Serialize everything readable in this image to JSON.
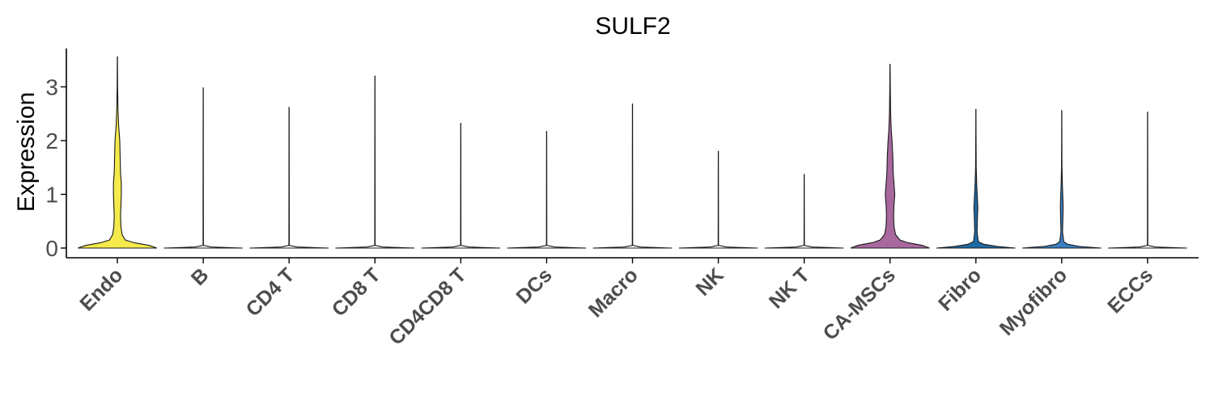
{
  "chart_data": {
    "type": "violin",
    "title": "SULF2",
    "xlabel": "",
    "ylabel": "Expression",
    "ylim": [
      -0.15,
      3.7
    ],
    "yticks": [
      0,
      1,
      2,
      3
    ],
    "ytick_labels": [
      "0",
      "1",
      "2",
      "3"
    ],
    "grid": false,
    "legend": "none",
    "categories": [
      "Endo",
      "B",
      "CD4 T",
      "CD8 T",
      "CD4CD8 T",
      "DCs",
      "Macro",
      "NK",
      "NK T",
      "CA-MSCs",
      "Fibro",
      "Myofibro",
      "ECCs"
    ],
    "max_values": [
      3.56,
      2.98,
      2.62,
      3.2,
      2.32,
      2.17,
      2.68,
      1.8,
      1.37,
      3.42,
      2.58,
      2.56,
      2.53
    ],
    "colors": [
      "#f5ea4b",
      "#ffffff",
      "#ffffff",
      "#ffffff",
      "#ffffff",
      "#ffffff",
      "#ffffff",
      "#ffffff",
      "#ffffff",
      "#a8689e",
      "#1f6aa5",
      "#3a7fc0",
      "#ffffff"
    ],
    "density_profiles": [
      [
        [
          0,
          1.0
        ],
        [
          0.05,
          0.8
        ],
        [
          0.1,
          0.42
        ],
        [
          0.15,
          0.2
        ],
        [
          0.25,
          0.12
        ],
        [
          0.4,
          0.09
        ],
        [
          0.6,
          0.08
        ],
        [
          0.8,
          0.09
        ],
        [
          1.0,
          0.1
        ],
        [
          1.2,
          0.1
        ],
        [
          1.4,
          0.08
        ],
        [
          1.7,
          0.07
        ],
        [
          2.0,
          0.06
        ],
        [
          2.3,
          0.03
        ],
        [
          2.6,
          0.015
        ],
        [
          3.0,
          0.006
        ],
        [
          3.56,
          0.002
        ]
      ],
      [
        [
          0,
          1.0
        ],
        [
          0.02,
          0.2
        ],
        [
          0.05,
          0.005
        ],
        [
          2.98,
          0.002
        ]
      ],
      [
        [
          0,
          1.0
        ],
        [
          0.02,
          0.2
        ],
        [
          0.05,
          0.005
        ],
        [
          2.62,
          0.002
        ]
      ],
      [
        [
          0,
          1.0
        ],
        [
          0.02,
          0.2
        ],
        [
          0.05,
          0.005
        ],
        [
          3.2,
          0.002
        ]
      ],
      [
        [
          0,
          1.0
        ],
        [
          0.02,
          0.2
        ],
        [
          0.05,
          0.005
        ],
        [
          2.32,
          0.002
        ]
      ],
      [
        [
          0,
          1.0
        ],
        [
          0.02,
          0.2
        ],
        [
          0.05,
          0.005
        ],
        [
          2.17,
          0.002
        ]
      ],
      [
        [
          0,
          1.0
        ],
        [
          0.02,
          0.2
        ],
        [
          0.05,
          0.005
        ],
        [
          2.68,
          0.002
        ]
      ],
      [
        [
          0,
          1.0
        ],
        [
          0.02,
          0.2
        ],
        [
          0.05,
          0.005
        ],
        [
          1.8,
          0.002
        ]
      ],
      [
        [
          0,
          1.0
        ],
        [
          0.02,
          0.2
        ],
        [
          0.05,
          0.005
        ],
        [
          1.37,
          0.002
        ]
      ],
      [
        [
          0,
          1.0
        ],
        [
          0.05,
          0.82
        ],
        [
          0.1,
          0.45
        ],
        [
          0.15,
          0.25
        ],
        [
          0.25,
          0.14
        ],
        [
          0.4,
          0.1
        ],
        [
          0.6,
          0.09
        ],
        [
          0.8,
          0.1
        ],
        [
          1.0,
          0.12
        ],
        [
          1.2,
          0.1
        ],
        [
          1.4,
          0.08
        ],
        [
          1.7,
          0.07
        ],
        [
          2.0,
          0.05
        ],
        [
          2.2,
          0.03
        ],
        [
          2.5,
          0.015
        ],
        [
          3.0,
          0.006
        ],
        [
          3.42,
          0.002
        ]
      ],
      [
        [
          0,
          1.0
        ],
        [
          0.03,
          0.55
        ],
        [
          0.07,
          0.2
        ],
        [
          0.12,
          0.06
        ],
        [
          0.3,
          0.03
        ],
        [
          0.6,
          0.04
        ],
        [
          0.75,
          0.05
        ],
        [
          0.9,
          0.04
        ],
        [
          1.2,
          0.02
        ],
        [
          1.5,
          0.008
        ],
        [
          2.0,
          0.004
        ],
        [
          2.58,
          0.002
        ]
      ],
      [
        [
          0,
          1.0
        ],
        [
          0.03,
          0.45
        ],
        [
          0.07,
          0.15
        ],
        [
          0.12,
          0.05
        ],
        [
          0.3,
          0.02
        ],
        [
          0.6,
          0.03
        ],
        [
          0.75,
          0.035
        ],
        [
          0.9,
          0.03
        ],
        [
          1.2,
          0.015
        ],
        [
          1.5,
          0.006
        ],
        [
          2.0,
          0.003
        ],
        [
          2.56,
          0.002
        ]
      ],
      [
        [
          0,
          1.0
        ],
        [
          0.02,
          0.2
        ],
        [
          0.05,
          0.005
        ],
        [
          2.53,
          0.002
        ]
      ]
    ]
  }
}
